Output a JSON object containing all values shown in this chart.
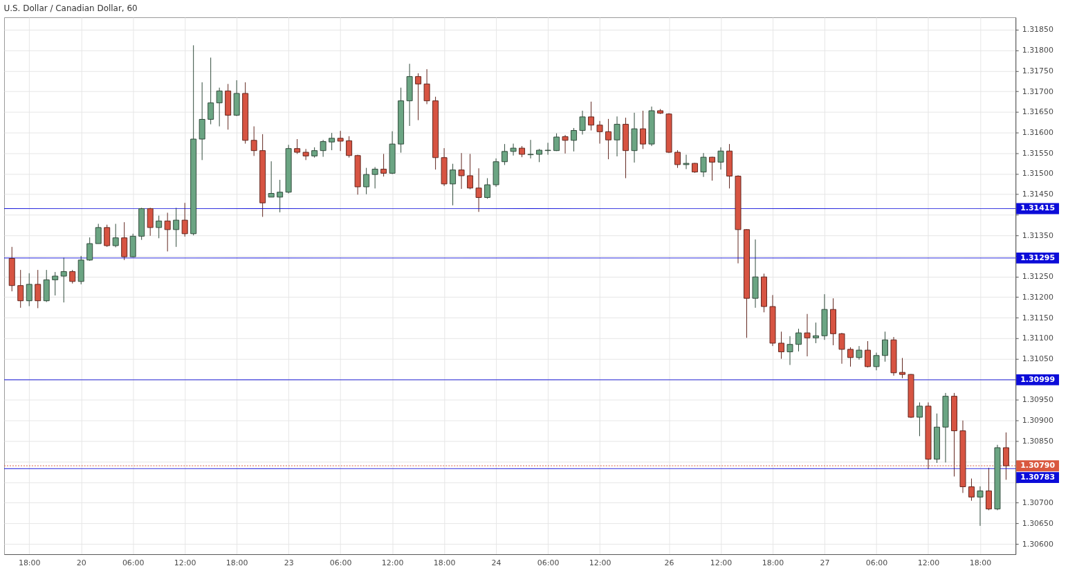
{
  "chart_data": {
    "type": "candlestick",
    "title": "U.S. Dollar / Canadian Dollar, 60",
    "categories": [
      null,
      null,
      "18:00",
      null,
      null,
      null,
      null,
      null,
      "20",
      null,
      null,
      null,
      null,
      null,
      "06:00",
      null,
      null,
      null,
      null,
      null,
      "12:00",
      null,
      null,
      null,
      null,
      null,
      "18:00",
      null,
      null,
      null,
      null,
      null,
      "23",
      null,
      null,
      null,
      null,
      null,
      "06:00",
      null,
      null,
      null,
      null,
      null,
      "12:00",
      null,
      null,
      null,
      null,
      null,
      "18:00",
      null,
      null,
      null,
      null,
      null,
      "24",
      null,
      null,
      null,
      null,
      null,
      "06:00",
      null,
      null,
      null,
      null,
      null,
      "12:00",
      null,
      null,
      null,
      null,
      null,
      null,
      null,
      "26",
      null,
      null,
      null,
      null,
      null,
      "12:00",
      null,
      null,
      null,
      null,
      null,
      "18:00",
      null,
      null,
      null,
      null,
      null,
      "27",
      null,
      null,
      null,
      null,
      null,
      "06:00",
      null,
      null,
      null,
      null,
      null,
      "12:00",
      null,
      null,
      null,
      null,
      null,
      "18:00",
      null,
      null,
      null
    ],
    "ohlc": [
      [
        1.31294,
        1.31322,
        1.31214,
        1.31228
      ],
      [
        1.31228,
        1.31266,
        1.31174,
        1.31191
      ],
      [
        1.31191,
        1.31258,
        1.31178,
        1.31231
      ],
      [
        1.31231,
        1.31266,
        1.31173,
        1.31191
      ],
      [
        1.31191,
        1.31266,
        1.31188,
        1.31242
      ],
      [
        1.31242,
        1.31261,
        1.31204,
        1.31251
      ],
      [
        1.31251,
        1.31296,
        1.31187,
        1.31262
      ],
      [
        1.31262,
        1.31266,
        1.31233,
        1.31238
      ],
      [
        1.31238,
        1.313,
        1.31231,
        1.3129
      ],
      [
        1.3129,
        1.31345,
        1.31288,
        1.3133
      ],
      [
        1.3133,
        1.31378,
        1.3133,
        1.31369
      ],
      [
        1.31369,
        1.31376,
        1.31322,
        1.31325
      ],
      [
        1.31325,
        1.31378,
        1.31321,
        1.31344
      ],
      [
        1.31344,
        1.31382,
        1.3129,
        1.31298
      ],
      [
        1.31298,
        1.31354,
        1.31297,
        1.31348
      ],
      [
        1.31348,
        1.31417,
        1.31339,
        1.31415
      ],
      [
        1.31415,
        1.31417,
        1.31349,
        1.31369
      ],
      [
        1.31369,
        1.31398,
        1.31343,
        1.31385
      ],
      [
        1.31385,
        1.31405,
        1.31311,
        1.31364
      ],
      [
        1.31364,
        1.31417,
        1.31322,
        1.31387
      ],
      [
        1.31387,
        1.31429,
        1.31347,
        1.31354
      ],
      [
        1.31354,
        1.31812,
        1.3135,
        1.31584
      ],
      [
        1.31584,
        1.31722,
        1.31533,
        1.31632
      ],
      [
        1.31632,
        1.31782,
        1.3162,
        1.31672
      ],
      [
        1.31672,
        1.31709,
        1.31615,
        1.31701
      ],
      [
        1.31701,
        1.31718,
        1.31607,
        1.31642
      ],
      [
        1.31642,
        1.31727,
        1.3164,
        1.31695
      ],
      [
        1.31695,
        1.31722,
        1.31573,
        1.31581
      ],
      [
        1.31581,
        1.31615,
        1.31543,
        1.31556
      ],
      [
        1.31556,
        1.31596,
        1.31395,
        1.31429
      ],
      [
        1.31443,
        1.3153,
        1.31443,
        1.31452
      ],
      [
        1.31443,
        1.31485,
        1.31406,
        1.31455
      ],
      [
        1.31455,
        1.3157,
        1.31452,
        1.31561
      ],
      [
        1.31561,
        1.31584,
        1.31548,
        1.31552
      ],
      [
        1.31552,
        1.3156,
        1.31533,
        1.31543
      ],
      [
        1.31543,
        1.31564,
        1.31539,
        1.31556
      ],
      [
        1.31556,
        1.31582,
        1.31541,
        1.31578
      ],
      [
        1.31577,
        1.31599,
        1.31557,
        1.31586
      ],
      [
        1.31586,
        1.31604,
        1.31555,
        1.31579
      ],
      [
        1.3158,
        1.31591,
        1.31539,
        1.31544
      ],
      [
        1.31544,
        1.31546,
        1.31449,
        1.31468
      ],
      [
        1.31468,
        1.31514,
        1.3145,
        1.31498
      ],
      [
        1.31498,
        1.31516,
        1.31464,
        1.31511
      ],
      [
        1.31511,
        1.31548,
        1.31493,
        1.31501
      ],
      [
        1.31501,
        1.31603,
        1.31499,
        1.31572
      ],
      [
        1.31572,
        1.31709,
        1.31551,
        1.31677
      ],
      [
        1.31677,
        1.31767,
        1.31616,
        1.31736
      ],
      [
        1.31736,
        1.31744,
        1.3163,
        1.31718
      ],
      [
        1.31718,
        1.31754,
        1.31669,
        1.31677
      ],
      [
        1.31677,
        1.31687,
        1.3151,
        1.31539
      ],
      [
        1.31539,
        1.31562,
        1.3147,
        1.31475
      ],
      [
        1.31475,
        1.31524,
        1.31423,
        1.31509
      ],
      [
        1.31509,
        1.3155,
        1.31463,
        1.31495
      ],
      [
        1.31495,
        1.31548,
        1.31462,
        1.31465
      ],
      [
        1.31465,
        1.31513,
        1.31407,
        1.31442
      ],
      [
        1.31442,
        1.31489,
        1.31439,
        1.31473
      ],
      [
        1.31473,
        1.31537,
        1.31468,
        1.31529
      ],
      [
        1.31529,
        1.31572,
        1.31521,
        1.31554
      ],
      [
        1.31554,
        1.31573,
        1.31544,
        1.31562
      ],
      [
        1.31562,
        1.31567,
        1.3154,
        1.31547
      ],
      [
        1.31546,
        1.31582,
        1.31537,
        1.31547
      ],
      [
        1.31547,
        1.3156,
        1.31528,
        1.31557
      ],
      [
        1.31556,
        1.31575,
        1.31546,
        1.31557
      ],
      [
        1.31556,
        1.31598,
        1.31555,
        1.31589
      ],
      [
        1.3159,
        1.31594,
        1.31549,
        1.31581
      ],
      [
        1.31581,
        1.31611,
        1.31554,
        1.31605
      ],
      [
        1.31605,
        1.31653,
        1.31595,
        1.31638
      ],
      [
        1.31638,
        1.31675,
        1.31605,
        1.31618
      ],
      [
        1.31618,
        1.31628,
        1.31573,
        1.31602
      ],
      [
        1.31602,
        1.31633,
        1.31535,
        1.31582
      ],
      [
        1.31582,
        1.31639,
        1.31542,
        1.3162
      ],
      [
        1.3162,
        1.31636,
        1.31489,
        1.31556
      ],
      [
        1.31556,
        1.31648,
        1.31527,
        1.31609
      ],
      [
        1.31609,
        1.31653,
        1.3156,
        1.31572
      ],
      [
        1.31572,
        1.31663,
        1.31567,
        1.31653
      ],
      [
        1.31653,
        1.31657,
        1.31645,
        1.31647
      ],
      [
        1.31645,
        1.31647,
        1.3155,
        1.31552
      ],
      [
        1.31552,
        1.31557,
        1.31514,
        1.31522
      ],
      [
        1.31522,
        1.31546,
        1.31511,
        1.31525
      ],
      [
        1.31525,
        1.31526,
        1.31502,
        1.31504
      ],
      [
        1.31504,
        1.3155,
        1.31492,
        1.3154
      ],
      [
        1.3154,
        1.31541,
        1.31483,
        1.31528
      ],
      [
        1.31528,
        1.31564,
        1.3151,
        1.31555
      ],
      [
        1.31555,
        1.31572,
        1.31464,
        1.31494
      ],
      [
        1.31494,
        1.31496,
        1.31282,
        1.31364
      ],
      [
        1.31364,
        1.31365,
        1.31101,
        1.31197
      ],
      [
        1.31197,
        1.3134,
        1.31174,
        1.31249
      ],
      [
        1.31249,
        1.31257,
        1.31163,
        1.31177
      ],
      [
        1.31177,
        1.31205,
        1.31081,
        1.31088
      ],
      [
        1.31088,
        1.31116,
        1.3105,
        1.31067
      ],
      [
        1.31067,
        1.31105,
        1.31035,
        1.31085
      ],
      [
        1.31085,
        1.31123,
        1.31068,
        1.31113
      ],
      [
        1.31113,
        1.31159,
        1.31056,
        1.31101
      ],
      [
        1.31101,
        1.31138,
        1.31088,
        1.31106
      ],
      [
        1.31106,
        1.31207,
        1.31096,
        1.3117
      ],
      [
        1.3117,
        1.31197,
        1.31083,
        1.31111
      ],
      [
        1.31111,
        1.31113,
        1.31038,
        1.31073
      ],
      [
        1.31073,
        1.31078,
        1.31031,
        1.31053
      ],
      [
        1.31053,
        1.31081,
        1.31048,
        1.31071
      ],
      [
        1.31071,
        1.31093,
        1.31029,
        1.31031
      ],
      [
        1.31031,
        1.31065,
        1.31022,
        1.31058
      ],
      [
        1.31058,
        1.31116,
        1.31043,
        1.31096
      ],
      [
        1.31096,
        1.31103,
        1.31009,
        1.31016
      ],
      [
        1.31017,
        1.31052,
        1.31003,
        1.31012
      ],
      [
        1.31012,
        1.31013,
        1.30906,
        1.30908
      ],
      [
        1.30908,
        1.30944,
        1.30862,
        1.30935
      ],
      [
        1.30935,
        1.30944,
        1.30782,
        1.30806
      ],
      [
        1.30806,
        1.30917,
        1.30797,
        1.30884
      ],
      [
        1.30884,
        1.30967,
        1.30798,
        1.30959
      ],
      [
        1.30959,
        1.30967,
        1.30764,
        1.30875
      ],
      [
        1.30875,
        1.309,
        1.30724,
        1.30739
      ],
      [
        1.30739,
        1.30759,
        1.30705,
        1.30714
      ],
      [
        1.30714,
        1.3074,
        1.30644,
        1.30729
      ],
      [
        1.30729,
        1.30785,
        1.30682,
        1.30685
      ],
      [
        1.30685,
        1.30841,
        1.30682,
        1.30834
      ],
      [
        1.30834,
        1.30871,
        1.30756,
        1.3079
      ]
    ],
    "colors": [
      "#d75442",
      "#d75442",
      "#6ba583",
      "#d75442",
      "#6ba583",
      "#6ba583",
      "#6ba583",
      "#d75442",
      "#6ba583",
      "#6ba583",
      "#6ba583",
      "#d75442",
      "#6ba583",
      "#d75442",
      "#6ba583",
      "#6ba583",
      "#d75442",
      "#6ba583",
      "#d75442",
      "#6ba583",
      "#d75442",
      "#6ba583",
      "#6ba583",
      "#6ba583",
      "#6ba583",
      "#d75442",
      "#6ba583",
      "#d75442",
      "#d75442",
      "#d75442",
      "#6ba583",
      "#6ba583",
      "#6ba583",
      "#d75442",
      "#d75442",
      "#6ba583",
      "#6ba583",
      "#6ba583",
      "#d75442",
      "#d75442",
      "#d75442",
      "#6ba583",
      "#6ba583",
      "#d75442",
      "#6ba583",
      "#6ba583",
      "#6ba583",
      "#d75442",
      "#d75442",
      "#d75442",
      "#d75442",
      "#6ba583",
      "#d75442",
      "#d75442",
      "#d75442",
      "#6ba583",
      "#6ba583",
      "#6ba583",
      "#6ba583",
      "#d75442",
      "#6ba583",
      "#6ba583",
      "#6ba583",
      "#6ba583",
      "#d75442",
      "#6ba583",
      "#6ba583",
      "#d75442",
      "#d75442",
      "#d75442",
      "#6ba583",
      "#d75442",
      "#6ba583",
      "#d75442",
      "#6ba583",
      "#d75442",
      "#d75442",
      "#d75442",
      "#6ba583",
      "#d75442",
      "#6ba583",
      "#d75442",
      "#6ba583",
      "#d75442",
      "#d75442",
      "#d75442",
      "#6ba583",
      "#d75442",
      "#d75442",
      "#d75442",
      "#6ba583",
      "#6ba583",
      "#d75442",
      "#6ba583",
      "#6ba583",
      "#d75442",
      "#d75442",
      "#d75442",
      "#6ba583",
      "#d75442",
      "#6ba583",
      "#6ba583",
      "#d75442",
      "#d75442",
      "#d75442",
      "#6ba583",
      "#d75442",
      "#6ba583",
      "#6ba583",
      "#d75442",
      "#d75442",
      "#d75442",
      "#6ba583",
      "#d75442",
      "#6ba583",
      "#d75442"
    ],
    "ylim": [
      1.30575,
      1.3188
    ],
    "yticks": [
      {
        "value": 1.306,
        "label": "1.30600"
      },
      {
        "value": 1.3065,
        "label": "1.30650"
      },
      {
        "value": 1.307,
        "label": "1.30700"
      },
      {
        "value": 1.3075,
        "label": null
      },
      {
        "value": 1.308,
        "label": null
      },
      {
        "value": 1.3085,
        "label": "1.30850"
      },
      {
        "value": 1.309,
        "label": "1.30900"
      },
      {
        "value": 1.3095,
        "label": "1.30950"
      },
      {
        "value": 1.31,
        "label": null
      },
      {
        "value": 1.3105,
        "label": "1.31050"
      },
      {
        "value": 1.311,
        "label": "1.31100"
      },
      {
        "value": 1.3115,
        "label": "1.31150"
      },
      {
        "value": 1.312,
        "label": "1.31200"
      },
      {
        "value": 1.3125,
        "label": "1.31250"
      },
      {
        "value": 1.313,
        "label": null
      },
      {
        "value": 1.3135,
        "label": "1.31350"
      },
      {
        "value": 1.314,
        "label": null
      },
      {
        "value": 1.3145,
        "label": "1.31450"
      },
      {
        "value": 1.315,
        "label": "1.31500"
      },
      {
        "value": 1.3155,
        "label": "1.31550"
      },
      {
        "value": 1.316,
        "label": "1.31600"
      },
      {
        "value": 1.3165,
        "label": "1.31650"
      },
      {
        "value": 1.317,
        "label": "1.31700"
      },
      {
        "value": 1.3175,
        "label": "1.31750"
      },
      {
        "value": 1.318,
        "label": "1.31800"
      },
      {
        "value": 1.3185,
        "label": "1.31850"
      }
    ],
    "grid": true,
    "ref_lines": [
      {
        "axis": "y",
        "value": 1.31415,
        "label": "1.31415",
        "color": "#0c0cd9"
      },
      {
        "axis": "y",
        "value": 1.31295,
        "label": "1.31295",
        "color": "#0c0cd9"
      },
      {
        "axis": "y",
        "value": 1.30999,
        "label": "1.30999",
        "color": "#0c0cd9"
      },
      {
        "axis": "y",
        "value": 1.3079,
        "label": "1.30790",
        "color": "#d9583f",
        "line_style": "dotted"
      },
      {
        "axis": "y",
        "value": 1.30783,
        "label": "1.30783",
        "color": "#0c0cd9"
      }
    ]
  }
}
